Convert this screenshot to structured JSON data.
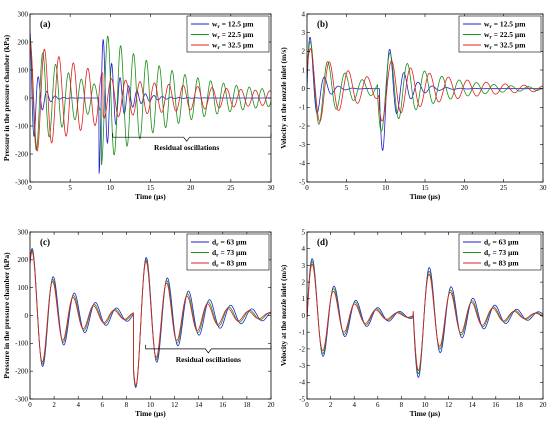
{
  "chart_data": [
    {
      "type": "line",
      "panel_label": "(a)",
      "xlabel": "Time (µs)",
      "ylabel": "Pressure in the pressure chamber (kPa)",
      "xlim": [
        0,
        30
      ],
      "ylim": [
        -300,
        300
      ],
      "xticks": [
        0,
        5,
        10,
        15,
        20,
        25,
        30
      ],
      "yticks": [
        -300,
        -200,
        -100,
        0,
        100,
        200,
        300
      ],
      "legend_position": "top-right",
      "annotation": "Residual oscillations",
      "series": [
        {
          "name": "wr = 12.5 µm",
          "sub": "r",
          "label_prefix": "w",
          "label_value": " = 12.5 µm",
          "color": "#1f1fd0",
          "model": {
            "A1": 240,
            "tau1": 0.9,
            "P1": 1.05,
            "ph1": 0,
            "t2": 8.6,
            "A2": -270,
            "tau2": 2.0,
            "P2": 1.05,
            "ph2": 0,
            "b": 0
          }
        },
        {
          "name": "wr = 22.5 µm",
          "sub": "r",
          "label_prefix": "w",
          "label_value": " = 22.5 µm",
          "color": "#1a8f1a",
          "model": {
            "A1": 215,
            "tau1": 5.5,
            "P1": 1.6,
            "ph1": 0,
            "t2": 8.9,
            "A2": -200,
            "tau2": 11,
            "P2": 1.6,
            "ph2": 0,
            "b": 0
          }
        },
        {
          "name": "wr = 32.5 µm",
          "sub": "r",
          "label_prefix": "w",
          "label_value": " = 32.5 µm",
          "color": "#e02020",
          "model": {
            "A1": 205,
            "tau1": 11,
            "P1": 1.8,
            "ph1": 0,
            "t2": 9.1,
            "A2": -150,
            "tau2": 15,
            "P2": 1.8,
            "ph2": 0,
            "b": 0
          }
        }
      ]
    },
    {
      "type": "line",
      "panel_label": "(b)",
      "xlabel": "Time (µs)",
      "ylabel": "Velocity at the nozzle inlet (m/s)",
      "xlim": [
        0,
        30
      ],
      "ylim": [
        -5,
        4
      ],
      "xticks": [
        0,
        5,
        10,
        15,
        20,
        25,
        30
      ],
      "yticks": [
        -5,
        -4,
        -3,
        -2,
        -1,
        0,
        1,
        2,
        3,
        4
      ],
      "legend_position": "top-right",
      "series": [
        {
          "name": "wr = 12.5 µm",
          "sub": "r",
          "label_prefix": "w",
          "label_value": " = 12.5 µm",
          "color": "#1f1fd0",
          "model": {
            "A1": 3.9,
            "tau1": 1.2,
            "P1": 1.8,
            "ph1": 0.45,
            "t2": 9.2,
            "A2": -4.1,
            "tau2": 2.0,
            "P2": 1.8,
            "ph2": 0.45,
            "b": 0
          }
        },
        {
          "name": "wr = 22.5 µm",
          "sub": "r",
          "label_prefix": "w",
          "label_value": " = 22.5 µm",
          "color": "#1a8f1a",
          "model": {
            "A1": 2.8,
            "tau1": 4.0,
            "P1": 2.2,
            "ph1": 0.45,
            "t2": 9.0,
            "A2": -2.7,
            "tau2": 6.0,
            "P2": 2.2,
            "ph2": 0.45,
            "b": 0
          }
        },
        {
          "name": "wr = 32.5 µm",
          "sub": "r",
          "label_prefix": "w",
          "label_value": " = 32.5 µm",
          "color": "#e02020",
          "model": {
            "A1": 2.3,
            "tau1": 6.0,
            "P1": 2.4,
            "ph1": 0.45,
            "t2": 9.2,
            "A2": -2.0,
            "tau2": 8.0,
            "P2": 2.4,
            "ph2": 0.45,
            "b": 0
          }
        }
      ]
    },
    {
      "type": "line",
      "panel_label": "(c)",
      "xlabel": "Time (µs)",
      "ylabel": "Pressure in the pressure chamber (kPa)",
      "xlim": [
        0,
        20
      ],
      "ylim": [
        -300,
        300
      ],
      "xticks": [
        0,
        2,
        4,
        6,
        8,
        10,
        12,
        14,
        16,
        18,
        20
      ],
      "yticks": [
        -300,
        -200,
        -100,
        0,
        100,
        200,
        300
      ],
      "legend_position": "top-right",
      "annotation": "Residual oscillations",
      "series": [
        {
          "name": "dr = 63 µm",
          "sub": "r",
          "label_prefix": "d",
          "label_value": " = 63 µm",
          "color": "#1f1fd0",
          "model": {
            "A1": 255,
            "tau1": 3.2,
            "P1": 1.75,
            "ph1": 0.2,
            "t2": 8.6,
            "A2": -285,
            "tau2": 4.0,
            "P2": 1.75,
            "ph2": 0.2,
            "b": 0
          }
        },
        {
          "name": "dr = 73 µm",
          "sub": "r",
          "label_prefix": "d",
          "label_value": " = 73 µm",
          "color": "#1a8f1a",
          "model": {
            "A1": 250,
            "tau1": 2.9,
            "P1": 1.72,
            "ph1": 0.2,
            "t2": 8.6,
            "A2": -280,
            "tau2": 3.6,
            "P2": 1.72,
            "ph2": 0.2,
            "b": 0
          }
        },
        {
          "name": "dr = 83 µm",
          "sub": "r",
          "label_prefix": "d",
          "label_value": " = 83 µm",
          "color": "#e02020",
          "model": {
            "A1": 245,
            "tau1": 2.7,
            "P1": 1.7,
            "ph1": 0.2,
            "t2": 8.6,
            "A2": -275,
            "tau2": 3.3,
            "P2": 1.7,
            "ph2": 0.2,
            "b": 0
          }
        }
      ]
    },
    {
      "type": "line",
      "panel_label": "(d)",
      "xlabel": "Time (µs)",
      "ylabel": "Velocity at the nozzle inlet (m/s)",
      "xlim": [
        0,
        20
      ],
      "ylim": [
        -5,
        5
      ],
      "xticks": [
        0,
        2,
        4,
        6,
        8,
        10,
        12,
        14,
        16,
        18,
        20
      ],
      "yticks": [
        -5,
        -4,
        -3,
        -2,
        -1,
        0,
        1,
        2,
        3,
        4,
        5
      ],
      "legend_position": "top-right",
      "series": [
        {
          "name": "dr = 63 µm",
          "sub": "r",
          "label_prefix": "d",
          "label_value": " = 63 µm",
          "color": "#1f1fd0",
          "model": {
            "A1": 4.0,
            "tau1": 2.8,
            "P1": 1.85,
            "ph1": 0.47,
            "t2": 9.0,
            "A2": -4.3,
            "tau2": 3.6,
            "P2": 1.85,
            "ph2": 0.47,
            "b": 0
          }
        },
        {
          "name": "dr = 73 µm",
          "sub": "r",
          "label_prefix": "d",
          "label_value": " = 73 µm",
          "color": "#1a8f1a",
          "model": {
            "A1": 3.85,
            "tau1": 2.6,
            "P1": 1.82,
            "ph1": 0.47,
            "t2": 9.0,
            "A2": -4.1,
            "tau2": 3.3,
            "P2": 1.82,
            "ph2": 0.47,
            "b": 0
          }
        },
        {
          "name": "dr = 83 µm",
          "sub": "r",
          "label_prefix": "d",
          "label_value": " = 83 µm",
          "color": "#e02020",
          "model": {
            "A1": 3.7,
            "tau1": 2.4,
            "P1": 1.8,
            "ph1": 0.47,
            "t2": 9.0,
            "A2": -3.9,
            "tau2": 3.1,
            "P2": 1.8,
            "ph2": 0.47,
            "b": 0
          }
        }
      ]
    }
  ]
}
